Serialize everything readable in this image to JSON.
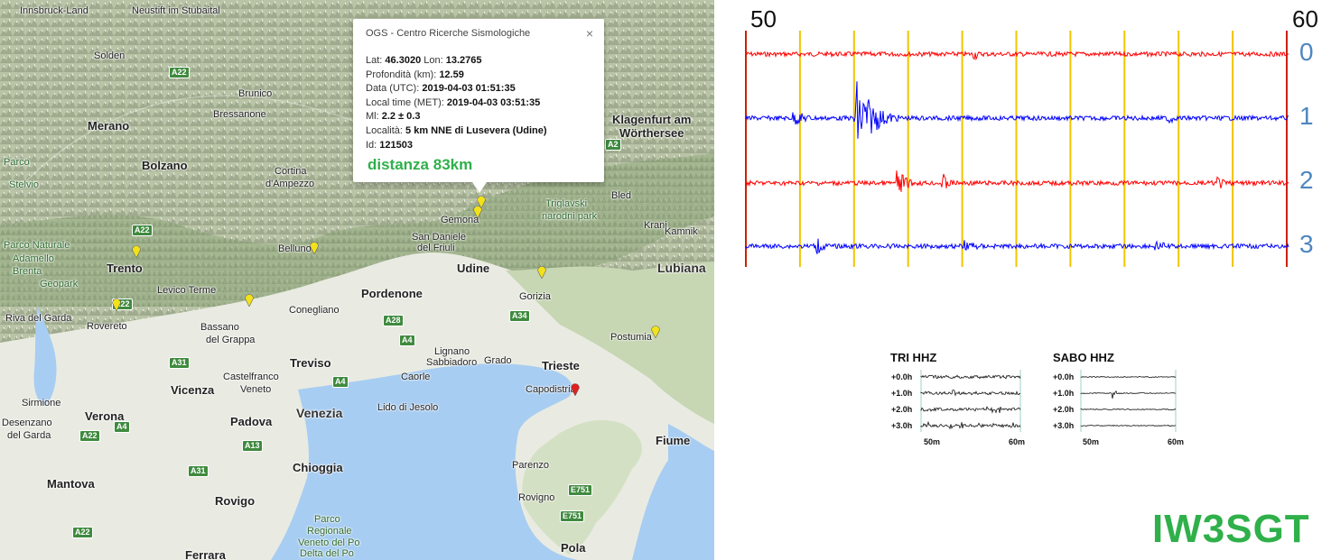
{
  "map": {
    "places": [
      {
        "name": "Innsbruck-Land",
        "cls": "",
        "l": 22,
        "t": 6
      },
      {
        "name": "Neustift im Stubaital",
        "cls": "",
        "l": 146,
        "t": 6
      },
      {
        "name": "Solden",
        "cls": "",
        "l": 104,
        "t": 56
      },
      {
        "name": "Merano",
        "cls": "big",
        "l": 97,
        "t": 132
      },
      {
        "name": "Bressanone",
        "cls": "",
        "l": 236,
        "t": 121
      },
      {
        "name": "Brunico",
        "cls": "",
        "l": 264,
        "t": 98
      },
      {
        "name": "Bolzano",
        "cls": "big",
        "l": 157,
        "t": 176
      },
      {
        "name": "Cortina",
        "cls": "",
        "l": 304,
        "t": 184
      },
      {
        "name": "d'Ampezzo",
        "cls": "",
        "l": 294,
        "t": 198
      },
      {
        "name": "Parco Naturale",
        "cls": "green",
        "l": 4,
        "t": 266
      },
      {
        "name": "Adamello",
        "cls": "green",
        "l": 14,
        "t": 281
      },
      {
        "name": "Brenta",
        "cls": "green",
        "l": 14,
        "t": 295
      },
      {
        "name": "Geopark",
        "cls": "green",
        "l": 44,
        "t": 309
      },
      {
        "name": "Trento",
        "cls": "big",
        "l": 118,
        "t": 290
      },
      {
        "name": "Levico Terme",
        "cls": "",
        "l": 174,
        "t": 316
      },
      {
        "name": "Riva del Garda",
        "cls": "",
        "l": 6,
        "t": 347
      },
      {
        "name": "Rovereto",
        "cls": "",
        "l": 96,
        "t": 356
      },
      {
        "name": "Bassano",
        "cls": "",
        "l": 222,
        "t": 357
      },
      {
        "name": "del Grappa",
        "cls": "",
        "l": 228,
        "t": 371
      },
      {
        "name": "Belluno",
        "cls": "",
        "l": 308,
        "t": 270
      },
      {
        "name": "Conegliano",
        "cls": "",
        "l": 320,
        "t": 338
      },
      {
        "name": "Pordenone",
        "cls": "big",
        "l": 400,
        "t": 318
      },
      {
        "name": "San Daniele",
        "cls": "",
        "l": 456,
        "t": 257
      },
      {
        "name": "del Friuli",
        "cls": "",
        "l": 462,
        "t": 269
      },
      {
        "name": "Gemona",
        "cls": "",
        "l": 488,
        "t": 238
      },
      {
        "name": "Udine",
        "cls": "big",
        "l": 506,
        "t": 290
      },
      {
        "name": "Gorizia",
        "cls": "",
        "l": 575,
        "t": 323
      },
      {
        "name": "Treviso",
        "cls": "big",
        "l": 321,
        "t": 395
      },
      {
        "name": "Castelfranco",
        "cls": "",
        "l": 247,
        "t": 412
      },
      {
        "name": "Veneto",
        "cls": "",
        "l": 266,
        "t": 426
      },
      {
        "name": "Vicenza",
        "cls": "big",
        "l": 189,
        "t": 425
      },
      {
        "name": "Verona",
        "cls": "big",
        "l": 94,
        "t": 454
      },
      {
        "name": "Sirmione",
        "cls": "",
        "l": 24,
        "t": 441
      },
      {
        "name": "Desenzano",
        "cls": "",
        "l": 2,
        "t": 463
      },
      {
        "name": "del Garda",
        "cls": "",
        "l": 8,
        "t": 477
      },
      {
        "name": "Padova",
        "cls": "big",
        "l": 255,
        "t": 460
      },
      {
        "name": "Venezia",
        "cls": "bigcity",
        "l": 328,
        "t": 450
      },
      {
        "name": "Lido di Jesolo",
        "cls": "",
        "l": 418,
        "t": 446
      },
      {
        "name": "Caorle",
        "cls": "",
        "l": 444,
        "t": 412
      },
      {
        "name": "Lignano",
        "cls": "",
        "l": 481,
        "t": 384
      },
      {
        "name": "Sabbiadoro",
        "cls": "",
        "l": 472,
        "t": 396
      },
      {
        "name": "Grado",
        "cls": "",
        "l": 536,
        "t": 394
      },
      {
        "name": "Trieste",
        "cls": "big",
        "l": 600,
        "t": 398
      },
      {
        "name": "Capodistria",
        "cls": "",
        "l": 582,
        "t": 426
      },
      {
        "name": "Chioggia",
        "cls": "big",
        "l": 324,
        "t": 511
      },
      {
        "name": "Mantova",
        "cls": "big",
        "l": 52,
        "t": 529
      },
      {
        "name": "Rovigo",
        "cls": "big",
        "l": 238,
        "t": 548
      },
      {
        "name": "Parenzo",
        "cls": "",
        "l": 567,
        "t": 510
      },
      {
        "name": "Rovigno",
        "cls": "",
        "l": 574,
        "t": 546
      },
      {
        "name": "Pola",
        "cls": "big",
        "l": 621,
        "t": 600
      },
      {
        "name": "Fiume",
        "cls": "big",
        "l": 726,
        "t": 481
      },
      {
        "name": "Postumia",
        "cls": "",
        "l": 676,
        "t": 368
      },
      {
        "name": "Lubiana",
        "cls": "bigcity",
        "l": 728,
        "t": 289
      },
      {
        "name": "Kranj",
        "cls": "",
        "l": 713,
        "t": 244
      },
      {
        "name": "Kamnik",
        "cls": "",
        "l": 736,
        "t": 251
      },
      {
        "name": "Triglavski",
        "cls": "green",
        "l": 604,
        "t": 220
      },
      {
        "name": "narodni park",
        "cls": "green",
        "l": 600,
        "t": 234
      },
      {
        "name": "Bled",
        "cls": "",
        "l": 677,
        "t": 211
      },
      {
        "name": "Klagenfurt am",
        "cls": "big",
        "l": 678,
        "t": 125
      },
      {
        "name": "Wörthersee",
        "cls": "big",
        "l": 686,
        "t": 140
      },
      {
        "name": "Parco",
        "cls": "green",
        "l": 348,
        "t": 570
      },
      {
        "name": "Regionale",
        "cls": "green",
        "l": 340,
        "t": 583
      },
      {
        "name": "Veneto del Po",
        "cls": "green",
        "l": 330,
        "t": 596
      },
      {
        "name": "Delta del Po",
        "cls": "green",
        "l": 332,
        "t": 608
      },
      {
        "name": "Ferrara",
        "cls": "big",
        "l": 205,
        "t": 608
      },
      {
        "name": "Parco",
        "cls": "green",
        "l": 4,
        "t": 174
      },
      {
        "name": "Stelvio",
        "cls": "green",
        "l": 10,
        "t": 199
      }
    ],
    "roads": [
      {
        "name": "A22",
        "l": 187,
        "t": 74
      },
      {
        "name": "A2",
        "l": 670,
        "t": 154
      },
      {
        "name": "A22",
        "l": 146,
        "t": 249
      },
      {
        "name": "A22",
        "l": 124,
        "t": 331
      },
      {
        "name": "A28",
        "l": 424,
        "t": 349
      },
      {
        "name": "A34",
        "l": 564,
        "t": 344
      },
      {
        "name": "A4",
        "l": 442,
        "t": 371
      },
      {
        "name": "A31",
        "l": 187,
        "t": 396
      },
      {
        "name": "A4",
        "l": 368,
        "t": 417
      },
      {
        "name": "A4",
        "l": 126,
        "t": 467
      },
      {
        "name": "A22",
        "l": 88,
        "t": 477
      },
      {
        "name": "A13",
        "l": 268,
        "t": 488
      },
      {
        "name": "A31",
        "l": 208,
        "t": 516
      },
      {
        "name": "E751",
        "l": 629,
        "t": 537
      },
      {
        "name": "E751",
        "l": 620,
        "t": 566
      },
      {
        "name": "A22",
        "l": 80,
        "t": 584
      }
    ],
    "markers_yellow": [
      {
        "l": 146,
        "t": 272
      },
      {
        "l": 343,
        "t": 268
      },
      {
        "l": 271,
        "t": 326
      },
      {
        "l": 524,
        "t": 228
      },
      {
        "l": 528,
        "t": 217
      },
      {
        "l": 595,
        "t": 295
      },
      {
        "l": 721,
        "t": 361
      },
      {
        "l": 124,
        "t": 331
      }
    ],
    "marker_red": {
      "l": 632,
      "t": 425
    }
  },
  "popup": {
    "title": "OGS - Centro Ricerche Sismologiche",
    "close": "×",
    "lat_label": "Lat:",
    "lat": "46.3020",
    "lon_label": "Lon:",
    "lon": "13.2765",
    "depth_label": "Profondità (km):",
    "depth": "12.59",
    "date_label": "Data (UTC):",
    "date": "2019-04-03 01:51:35",
    "local_label": "Local time (MET):",
    "local": "2019-04-03 03:51:35",
    "ml_label": "Ml:",
    "ml": "2.2 ± 0.3",
    "loc_label": "Località:",
    "loc": "5 km NNE di Lusevera (Udine)",
    "id_label": "Id:",
    "id": "121503",
    "distance": "distanza 83km"
  },
  "seismogram": {
    "start_label": "50",
    "end_label": "60",
    "channels": [
      "0",
      "1",
      "2",
      "3"
    ],
    "channel_colors": [
      "#ff0000",
      "#0000ff",
      "#ff0000",
      "#0000ff"
    ],
    "grid_color": "#f2c500",
    "edge_color": "#cc2200"
  },
  "mini": [
    {
      "title": "TRI HHZ",
      "rows": [
        "+0.0h",
        "+1.0h",
        "+2.0h",
        "+3.0h"
      ],
      "x_start": "50m",
      "x_end": "60m"
    },
    {
      "title": "SABO HHZ",
      "rows": [
        "+0.0h",
        "+1.0h",
        "+2.0h",
        "+3.0h"
      ],
      "x_start": "50m",
      "x_end": "60m"
    }
  ],
  "callsign": "IW3SGT"
}
